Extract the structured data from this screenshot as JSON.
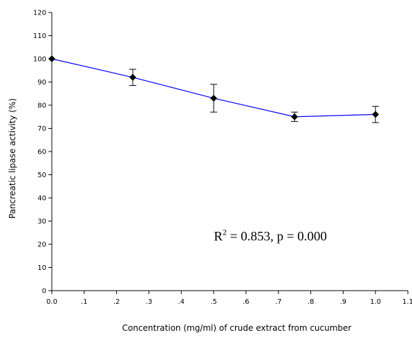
{
  "chart_data": {
    "type": "line",
    "xlabel": "Concentration (mg/ml) of crude extract from cucumber",
    "ylabel": "Pancreatic lipase activity (%)",
    "xlim": [
      0.0,
      1.1
    ],
    "ylim": [
      0,
      120
    ],
    "x_ticks": [
      0.0,
      0.1,
      0.2,
      0.3,
      0.4,
      0.5,
      0.6,
      0.7,
      0.8,
      0.9,
      1.0,
      1.1
    ],
    "x_tick_labels": [
      "0.0",
      ".1",
      ".2",
      ".3",
      ".4",
      ".5",
      ".6",
      ".7",
      ".8",
      ".9",
      "1.0",
      "1.1"
    ],
    "y_ticks": [
      0,
      10,
      20,
      30,
      40,
      50,
      60,
      70,
      80,
      90,
      100,
      110,
      120
    ],
    "y_tick_labels": [
      "0",
      "10",
      "20",
      "30",
      "40",
      "50",
      "60",
      "70",
      "80",
      "90",
      "100",
      "110",
      "120"
    ],
    "series": [
      {
        "x": [
          0.0,
          0.25,
          0.5,
          0.75,
          1.0
        ],
        "y": [
          100,
          92,
          83,
          75,
          76
        ],
        "error": [
          0,
          3.5,
          6,
          2,
          3.5
        ],
        "color": "#0000ff",
        "marker_color": "#000000"
      }
    ],
    "annotation": {
      "prefix": "R",
      "superscript": "2",
      "suffix": " = 0.853, p = 0.000",
      "x": 0.65,
      "y": 23.5
    },
    "grid": false,
    "legend": "none"
  }
}
